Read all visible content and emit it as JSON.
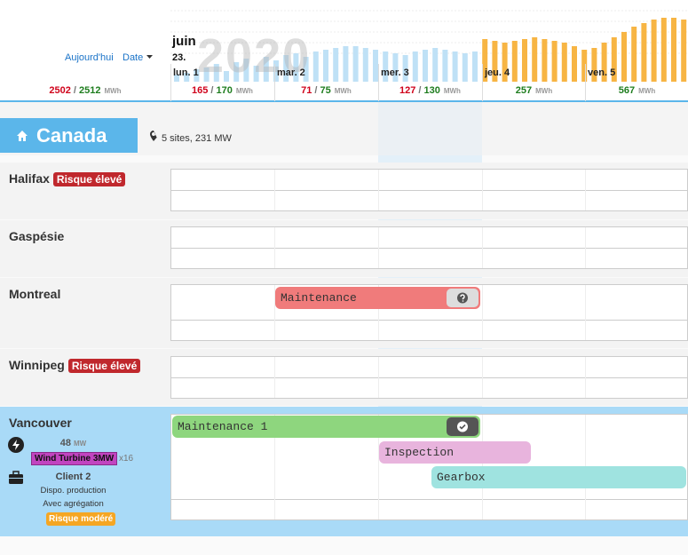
{
  "toolbar": {
    "today": "Aujourd'hui",
    "date": "Date"
  },
  "summary": {
    "planned": 2502,
    "sep": "/",
    "available": 2512,
    "unit": "MWh"
  },
  "calendar": {
    "month": "juin",
    "week": "23.",
    "year": "2020",
    "days": [
      {
        "label": "lun. 1",
        "planned": 165,
        "available": 170,
        "unit": "MWh"
      },
      {
        "label": "mar. 2",
        "planned": 71,
        "available": 75,
        "unit": "MWh"
      },
      {
        "label": "mer. 3",
        "planned": 127,
        "available": 130,
        "unit": "MWh"
      },
      {
        "label": "jeu. 4",
        "available": 257,
        "unit": "MWh"
      },
      {
        "label": "ven. 5",
        "available": 567,
        "unit": "MWh"
      }
    ]
  },
  "forecast": {
    "series": [
      {
        "color": "#bfe1f6",
        "values": [
          8,
          10,
          14,
          16,
          20,
          12,
          22,
          26,
          18,
          28,
          24,
          30,
          32,
          28,
          34,
          36,
          38,
          40,
          40,
          38,
          36,
          34,
          32,
          30,
          34,
          36,
          38,
          36,
          34,
          32,
          34
        ]
      },
      {
        "color": "#f7b544",
        "values": [
          48,
          46,
          44,
          46,
          48,
          50,
          48,
          46,
          44,
          40,
          36,
          38,
          44,
          50,
          56,
          62,
          66,
          70,
          72,
          72,
          70
        ]
      }
    ]
  },
  "region": {
    "name": "Canada",
    "summary": "5 sites, 231 MW"
  },
  "sites": [
    {
      "name": "Halifax",
      "badge": "Risque élevé"
    },
    {
      "name": "Gaspésie"
    },
    {
      "name": "Montreal",
      "tasks": [
        {
          "label": "Maintenance"
        }
      ]
    },
    {
      "name": "Winnipeg",
      "badge": "Risque élevé"
    },
    {
      "name": "Vancouver",
      "power": "48",
      "power_unit": "MW",
      "asset": "Wind Turbine 3MW",
      "count": "x16",
      "client": "Client 2",
      "lines": [
        "Dispo. production",
        "Avec agrégation"
      ],
      "risk": "Risque modéré",
      "tasks": [
        {
          "label": "Maintenance 1"
        },
        {
          "label": "Inspection"
        },
        {
          "label": "Gearbox"
        }
      ]
    }
  ]
}
